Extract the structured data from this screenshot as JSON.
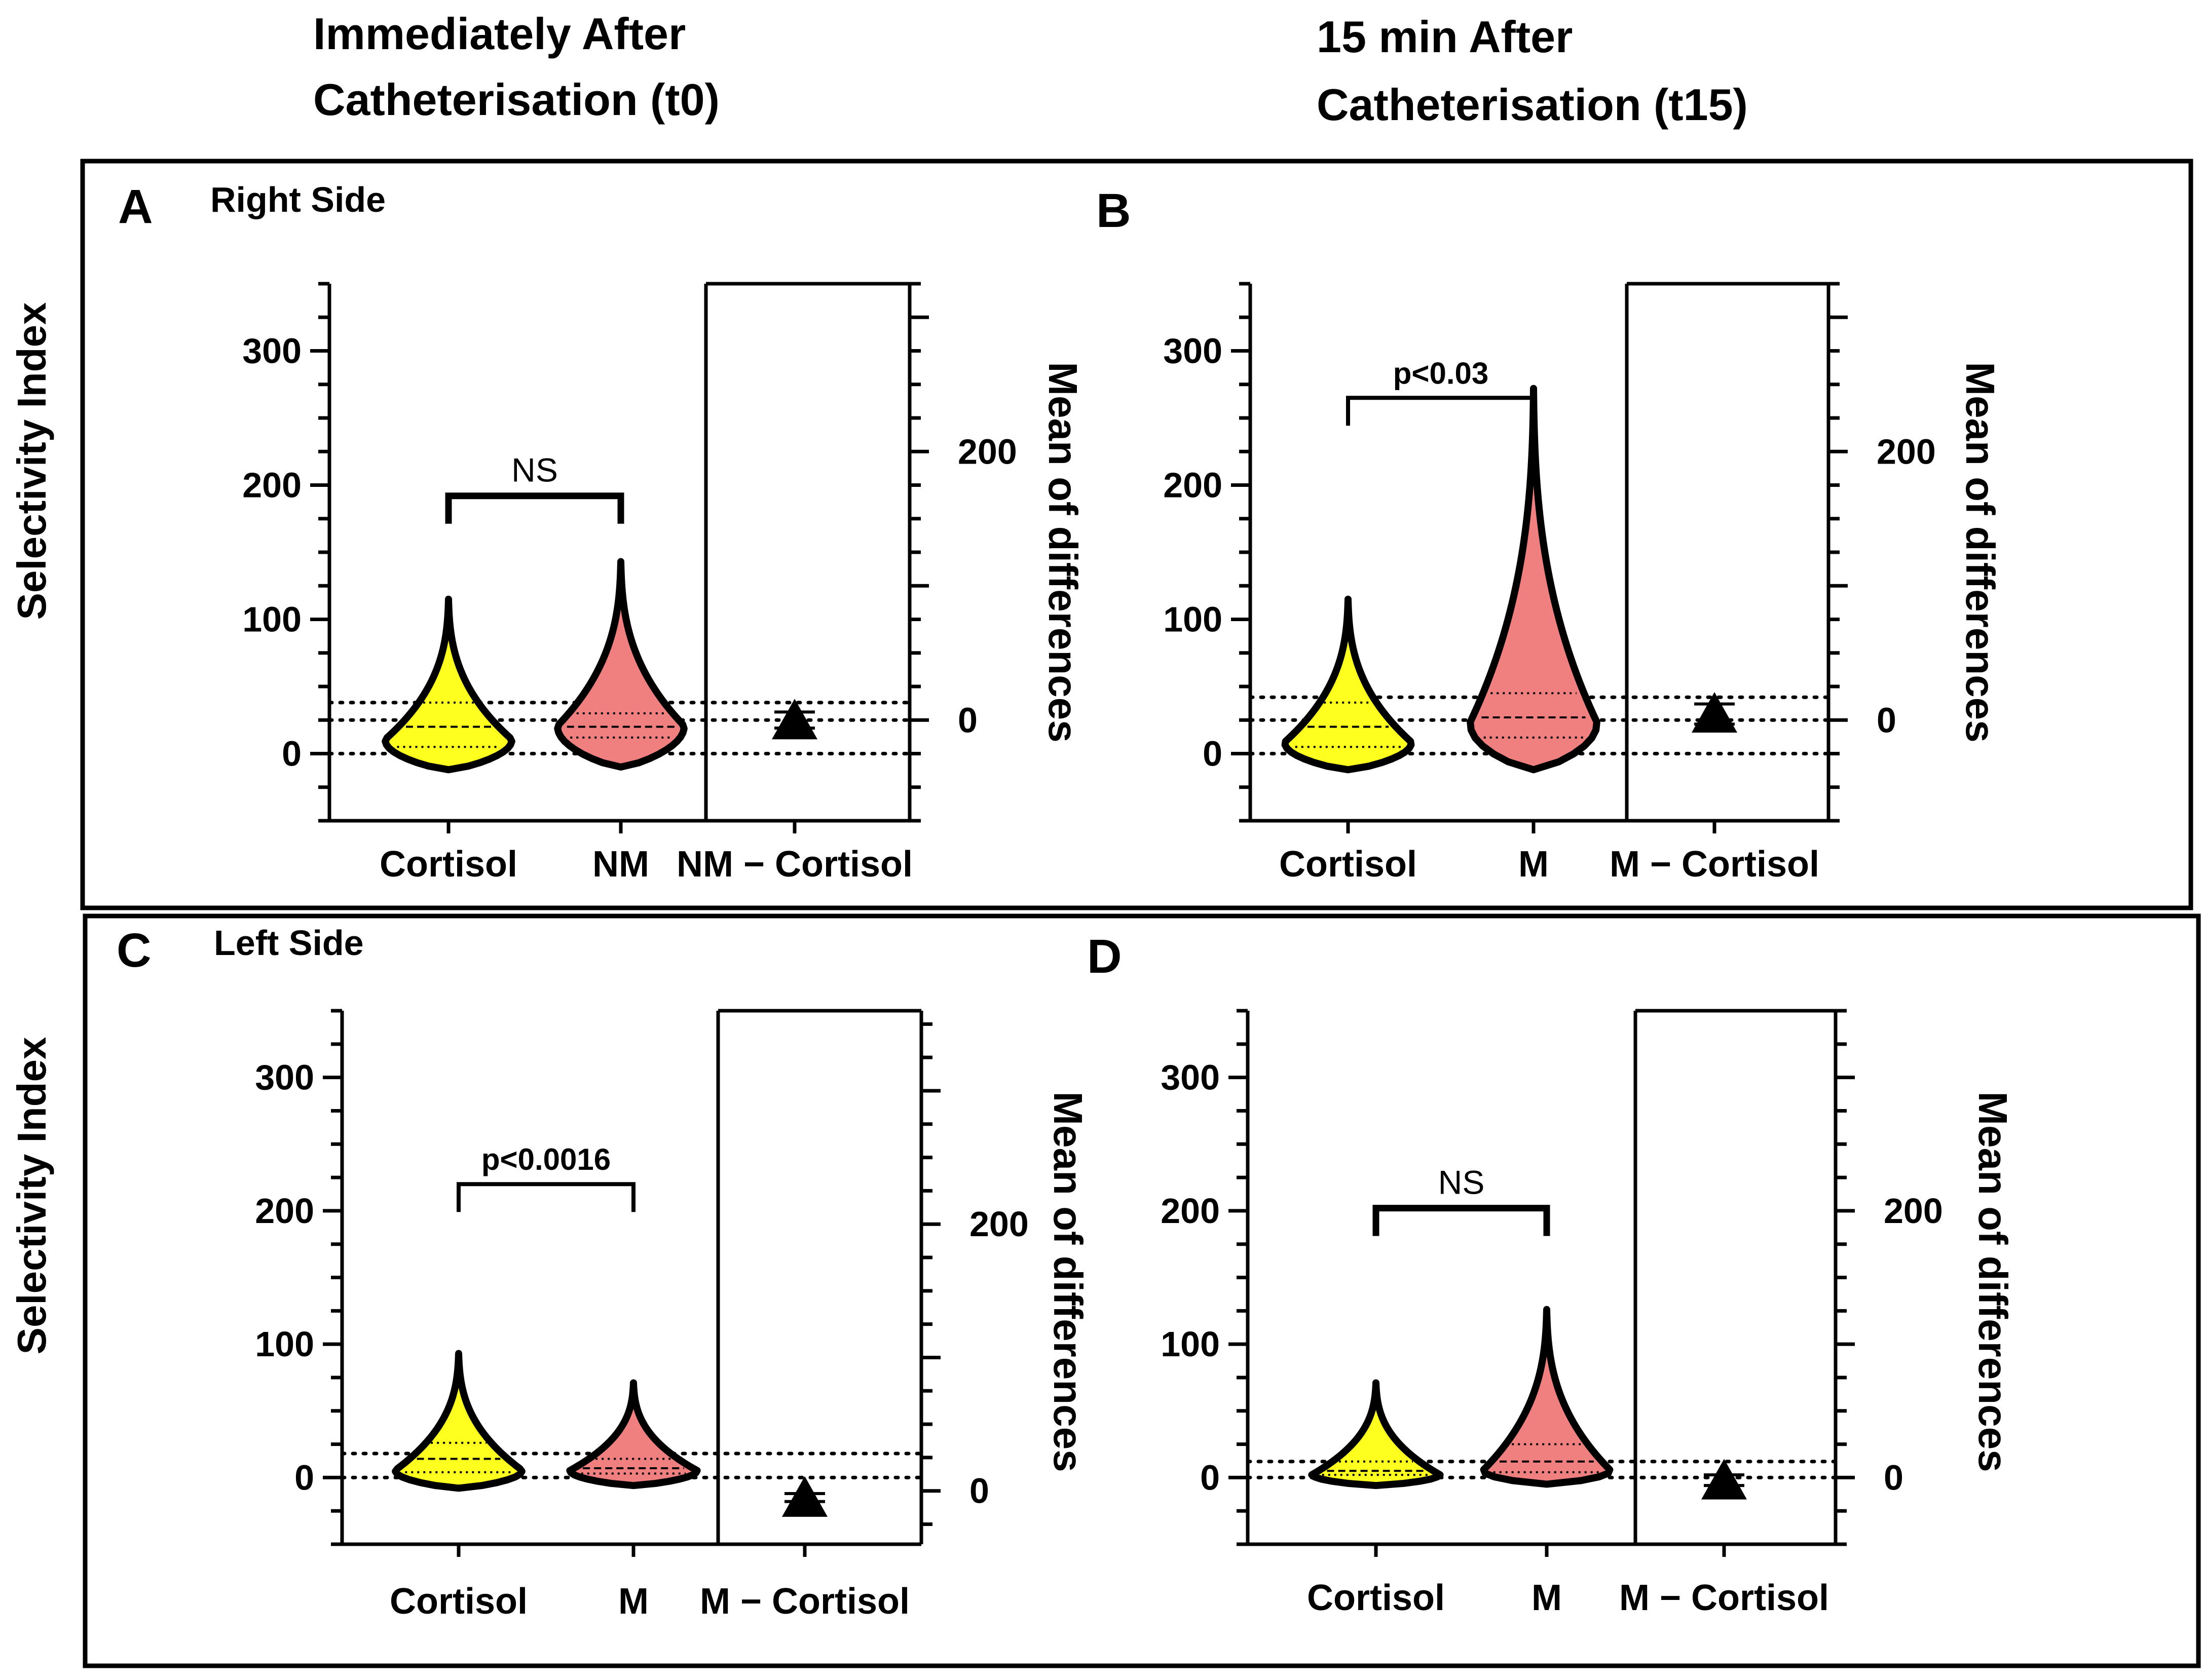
{
  "headers": {
    "col1_line1": "Immediately After",
    "col1_line2": "Catheterisation (t0)",
    "col2_line1": "15 min After",
    "col2_line2": "Catheterisation (t15)",
    "right_side": "Right Side",
    "left_side": "Left Side"
  },
  "colors": {
    "cortisol": "#ffff1f",
    "metanephrine": "#f08080",
    "outline": "#000000"
  },
  "chart_data": [
    {
      "panel": "A",
      "type": "violin",
      "side": "Right Side",
      "time": "t0",
      "ylabel": "Selectivity Index",
      "ylabel_right": "Mean of differences",
      "ylim": [
        -50,
        350
      ],
      "yticks": [
        "0",
        "100",
        "200",
        "300"
      ],
      "ylim_right": [
        -75,
        325
      ],
      "yticks_right": [
        "0",
        "200"
      ],
      "categories": [
        "Cortisol",
        "NM",
        "NM − Cortisol"
      ],
      "series": [
        {
          "name": "Cortisol",
          "min": -12,
          "max": 115,
          "median": 20,
          "q1": 5,
          "q3": 38,
          "peak": 10
        },
        {
          "name": "NM",
          "min": -10,
          "max": 143,
          "median": 20,
          "q1": 12,
          "q3": 30,
          "peak": 20
        }
      ],
      "mean_diff": {
        "value": 0,
        "ci_low": -6,
        "ci_high": 6
      },
      "reference_lines": [
        0,
        25,
        38
      ],
      "significance": {
        "label": "NS",
        "level": 192
      }
    },
    {
      "panel": "B",
      "type": "violin",
      "side": "Right Side",
      "time": "t15",
      "ylabel_right": "Mean of differences",
      "ylim": [
        -50,
        350
      ],
      "yticks": [
        "0",
        "100",
        "200",
        "300"
      ],
      "ylim_right": [
        -75,
        325
      ],
      "yticks_right": [
        "0",
        "200"
      ],
      "categories": [
        "Cortisol",
        "M",
        "M − Cortisol"
      ],
      "series": [
        {
          "name": "Cortisol",
          "min": -12,
          "max": 115,
          "median": 20,
          "q1": 5,
          "q3": 38,
          "peak": 8
        },
        {
          "name": "M",
          "min": -12,
          "max": 272,
          "median": 27,
          "q1": 12,
          "q3": 45,
          "peak": 22
        }
      ],
      "mean_diff": {
        "value": 5,
        "ci_low": -3,
        "ci_high": 12
      },
      "reference_lines": [
        0,
        25,
        42
      ],
      "significance": {
        "label": "p<0.03",
        "level": 265
      }
    },
    {
      "panel": "C",
      "type": "violin",
      "side": "Left Side",
      "time": "t0",
      "ylabel": "Selectivity Index",
      "ylabel_right": "Mean of differences",
      "ylim": [
        -50,
        350
      ],
      "yticks": [
        "0",
        "100",
        "200",
        "300"
      ],
      "ylim_right": [
        -40,
        360
      ],
      "yticks_right": [
        "0",
        "200"
      ],
      "categories": [
        "Cortisol",
        "M",
        "M − Cortisol"
      ],
      "series": [
        {
          "name": "Cortisol",
          "min": -8,
          "max": 93,
          "median": 14,
          "q1": 4,
          "q3": 26,
          "peak": 5
        },
        {
          "name": "M",
          "min": -6,
          "max": 71,
          "median": 7,
          "q1": 3,
          "q3": 14,
          "peak": 5
        }
      ],
      "mean_diff": {
        "value": -5,
        "ci_low": -8,
        "ci_high": -2
      },
      "reference_lines": [
        0,
        18
      ],
      "significance": {
        "label": "p<0.0016",
        "level": 220
      }
    },
    {
      "panel": "D",
      "type": "violin",
      "side": "Left Side",
      "time": "t15",
      "ylabel_right": "Mean of differences",
      "ylim": [
        -50,
        350
      ],
      "yticks": [
        "0",
        "100",
        "200",
        "300"
      ],
      "ylim_right": [
        -50,
        350
      ],
      "yticks_right": [
        "0",
        "200"
      ],
      "categories": [
        "Cortisol",
        "M",
        "M − Cortisol"
      ],
      "series": [
        {
          "name": "Cortisol",
          "min": -6,
          "max": 71,
          "median": 5,
          "q1": 2,
          "q3": 12,
          "peak": 2
        },
        {
          "name": "M",
          "min": -5,
          "max": 126,
          "median": 12,
          "q1": 4,
          "q3": 25,
          "peak": 5
        }
      ],
      "mean_diff": {
        "value": -2,
        "ci_low": -6,
        "ci_high": 2
      },
      "reference_lines": [
        0,
        12
      ],
      "significance": {
        "label": "NS",
        "level": 202
      }
    }
  ]
}
